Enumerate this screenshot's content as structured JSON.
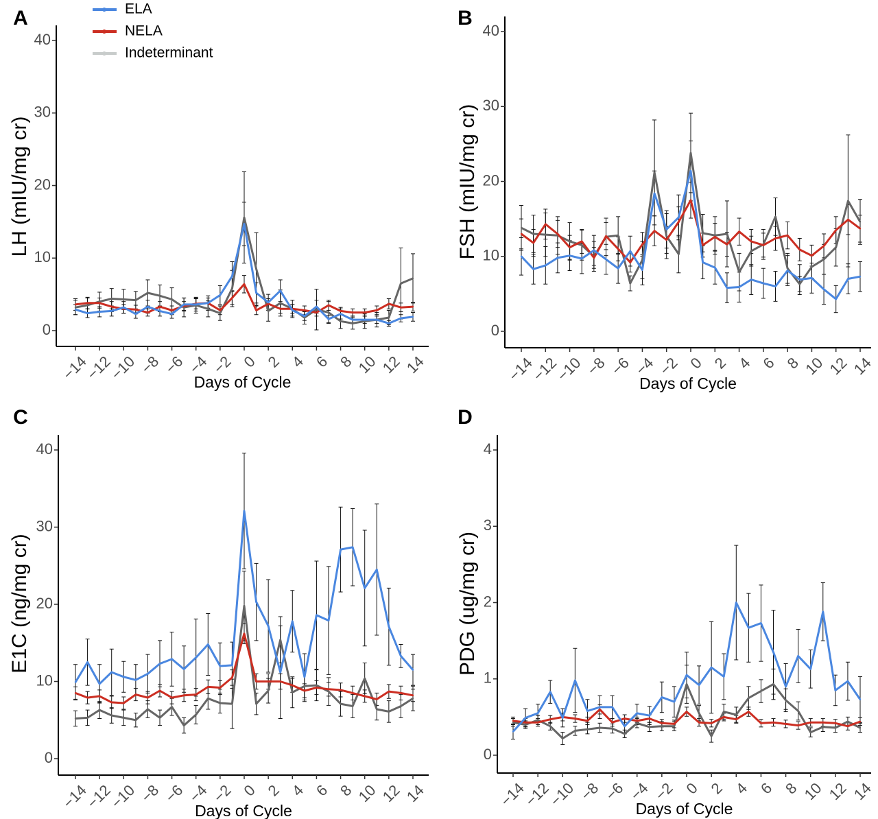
{
  "legend": {
    "items": [
      {
        "name": "ELA",
        "color": "#4a87e0"
      },
      {
        "name": "NELA",
        "color": "#cc2e22"
      },
      {
        "name": "Indeterminant",
        "color": "#c8cccb"
      }
    ]
  },
  "chart_data": [
    {
      "panel": "A",
      "type": "line",
      "xlabel": "Days of Cycle",
      "ylabel": "LH (mIU/mg cr)",
      "xlim": [
        -14,
        14
      ],
      "ylim": [
        0,
        40
      ],
      "xticks": [
        -14,
        -12,
        -10,
        -8,
        -6,
        -4,
        -2,
        0,
        2,
        4,
        6,
        8,
        10,
        12,
        14
      ],
      "xtick_labels": [
        "−14",
        "−12",
        "−10",
        "−8",
        "−6",
        "−4",
        "−2",
        "0",
        "2",
        "4",
        "6",
        "8",
        "10",
        "12",
        "14"
      ],
      "yticks": [
        0,
        10,
        20,
        30,
        40
      ],
      "ytick_labels": [
        "0",
        "10",
        "20",
        "30",
        "40"
      ],
      "x": [
        -14,
        -13,
        -12,
        -11,
        -10,
        -9,
        -8,
        -7,
        -6,
        -5,
        -4,
        -3,
        -2,
        -1,
        0,
        1,
        2,
        3,
        4,
        5,
        6,
        7,
        8,
        9,
        10,
        11,
        12,
        13,
        14
      ],
      "series": [
        {
          "name": "Indeterminant",
          "color": "#666666",
          "values": [
            3.2,
            3.5,
            4.0,
            4.4,
            4.3,
            4.2,
            5.2,
            4.8,
            4.3,
            3.2,
            3.5,
            3.0,
            2.4,
            5.8,
            15.6,
            8.5,
            2.7,
            3.8,
            3.0,
            1.8,
            2.9,
            2.5,
            1.3,
            1.0,
            1.3,
            1.5,
            1.8,
            6.5,
            7.2
          ],
          "err": [
            1.0,
            1.0,
            1.3,
            1.4,
            1.4,
            1.2,
            1.8,
            1.5,
            1.6,
            1.3,
            1.1,
            1.1,
            1.0,
            2.5,
            6.3,
            5.0,
            1.4,
            1.8,
            1.2,
            0.9,
            2.8,
            1.5,
            1.0,
            0.8,
            1.0,
            1.0,
            1.0,
            4.9,
            3.4
          ]
        },
        {
          "name": "NELA",
          "color": "#cc2e22",
          "values": [
            3.6,
            3.8,
            3.8,
            3.3,
            3.0,
            2.9,
            2.5,
            3.3,
            2.8,
            3.4,
            3.7,
            3.8,
            2.8,
            4.5,
            6.4,
            2.8,
            3.7,
            3.0,
            3.0,
            2.8,
            2.5,
            3.5,
            2.7,
            2.5,
            2.5,
            2.8,
            3.7,
            3.2,
            3.3
          ],
          "err": [
            0.8,
            0.8,
            0.7,
            0.7,
            0.6,
            0.6,
            0.5,
            0.7,
            0.6,
            0.6,
            0.7,
            0.7,
            0.6,
            0.9,
            1.2,
            0.6,
            0.7,
            0.6,
            0.6,
            0.6,
            0.5,
            0.7,
            0.5,
            0.5,
            0.5,
            0.6,
            0.7,
            0.6,
            0.6
          ]
        },
        {
          "name": "ELA",
          "color": "#4a87e0",
          "values": [
            2.9,
            2.4,
            2.6,
            2.7,
            3.2,
            2.3,
            3.3,
            2.7,
            2.3,
            3.6,
            3.6,
            3.8,
            4.9,
            7.5,
            14.7,
            5.2,
            3.9,
            5.5,
            2.8,
            2.0,
            3.3,
            1.6,
            2.3,
            1.5,
            1.5,
            1.5,
            1.0,
            1.7,
            1.9
          ],
          "err": [
            0.7,
            0.6,
            0.7,
            0.7,
            0.8,
            0.6,
            0.9,
            0.7,
            0.6,
            0.9,
            0.9,
            1.0,
            1.3,
            2.0,
            3.0,
            1.4,
            1.1,
            1.5,
            0.8,
            0.6,
            0.9,
            0.5,
            0.7,
            0.5,
            0.5,
            0.5,
            0.4,
            0.5,
            0.6
          ]
        }
      ]
    },
    {
      "panel": "B",
      "type": "line",
      "xlabel": "Days of Cycle",
      "ylabel": "FSH (mIU/mg cr)",
      "xlim": [
        -14,
        14
      ],
      "ylim": [
        0,
        40
      ],
      "xticks": [
        -14,
        -12,
        -10,
        -8,
        -6,
        -4,
        -2,
        0,
        2,
        4,
        6,
        8,
        10,
        12,
        14
      ],
      "xtick_labels": [
        "−14",
        "−12",
        "−10",
        "−8",
        "−6",
        "−4",
        "−2",
        "0",
        "2",
        "4",
        "6",
        "8",
        "10",
        "12",
        "14"
      ],
      "yticks": [
        0,
        10,
        20,
        30,
        40
      ],
      "ytick_labels": [
        "0",
        "10",
        "20",
        "30",
        "40"
      ],
      "x": [
        -14,
        -13,
        -12,
        -11,
        -10,
        -9,
        -8,
        -7,
        -6,
        -5,
        -4,
        -3,
        -2,
        -1,
        0,
        1,
        2,
        3,
        4,
        5,
        6,
        7,
        8,
        9,
        10,
        11,
        12,
        13,
        14
      ],
      "series": [
        {
          "name": "Indeterminant",
          "color": "#666666",
          "values": [
            13.8,
            13.0,
            12.9,
            12.8,
            12.0,
            11.5,
            10.0,
            12.6,
            12.8,
            6.4,
            9.5,
            21.2,
            12.7,
            10.3,
            23.8,
            13.1,
            12.8,
            13.0,
            7.9,
            10.7,
            11.6,
            15.3,
            8.4,
            6.3,
            8.6,
            9.6,
            11.2,
            17.4,
            14.6
          ],
          "err": [
            3.0,
            2.5,
            2.9,
            2.5,
            2.5,
            2.0,
            2.0,
            2.5,
            2.5,
            1.0,
            2.5,
            7.0,
            3.0,
            2.5,
            5.3,
            2.5,
            2.5,
            4.4,
            2.5,
            2.0,
            2.0,
            2.5,
            2.0,
            1.0,
            1.5,
            2.0,
            2.5,
            8.8,
            3.0
          ]
        },
        {
          "name": "NELA",
          "color": "#cc2e22",
          "values": [
            13.0,
            11.8,
            14.3,
            13.0,
            11.2,
            12.0,
            9.8,
            12.7,
            11.0,
            9.2,
            11.6,
            13.4,
            12.2,
            14.6,
            17.5,
            11.5,
            12.6,
            11.6,
            13.3,
            12.0,
            11.5,
            12.4,
            12.8,
            10.9,
            10.1,
            11.4,
            13.5,
            14.9,
            13.7
          ],
          "err": [
            2.0,
            1.8,
            2.0,
            1.8,
            1.6,
            1.6,
            1.4,
            1.8,
            1.6,
            1.3,
            1.6,
            2.0,
            1.8,
            2.0,
            2.4,
            1.6,
            1.8,
            1.6,
            1.8,
            1.6,
            1.6,
            1.6,
            1.8,
            1.5,
            1.4,
            1.6,
            1.8,
            2.0,
            1.8
          ]
        },
        {
          "name": "ELA",
          "color": "#4a87e0",
          "values": [
            10.0,
            8.3,
            8.8,
            9.8,
            10.1,
            9.7,
            10.8,
            9.6,
            8.4,
            10.7,
            8.2,
            18.4,
            13.6,
            15.2,
            21.4,
            9.2,
            8.5,
            5.8,
            5.9,
            6.9,
            6.4,
            6.0,
            8.1,
            6.9,
            7.1,
            5.6,
            4.3,
            7.0,
            7.3
          ],
          "err": [
            2.5,
            2.0,
            2.5,
            2.0,
            2.0,
            2.0,
            2.0,
            2.0,
            2.0,
            2.0,
            2.0,
            3.0,
            2.5,
            3.0,
            4.0,
            2.2,
            2.2,
            2.0,
            2.0,
            2.0,
            2.0,
            2.0,
            2.0,
            2.0,
            2.0,
            2.0,
            1.8,
            2.0,
            2.0
          ]
        }
      ]
    },
    {
      "panel": "C",
      "type": "line",
      "xlabel": "Days of Cycle",
      "ylabel": "E1C (ng/mg cr)",
      "xlim": [
        -14,
        14
      ],
      "ylim": [
        0,
        40
      ],
      "xticks": [
        -14,
        -12,
        -10,
        -8,
        -6,
        -4,
        -2,
        0,
        2,
        4,
        6,
        8,
        10,
        12,
        14
      ],
      "xtick_labels": [
        "−14",
        "−12",
        "−10",
        "−8",
        "−6",
        "−4",
        "−2",
        "0",
        "2",
        "4",
        "6",
        "8",
        "10",
        "12",
        "14"
      ],
      "yticks": [
        0,
        10,
        20,
        30,
        40
      ],
      "ytick_labels": [
        "0",
        "10",
        "20",
        "30",
        "40"
      ],
      "x": [
        -14,
        -13,
        -12,
        -11,
        -10,
        -9,
        -8,
        -7,
        -6,
        -5,
        -4,
        -3,
        -2,
        -1,
        0,
        1,
        2,
        3,
        4,
        5,
        6,
        7,
        8,
        9,
        10,
        11,
        12,
        13,
        14
      ],
      "series": [
        {
          "name": "Indeterminant",
          "color": "#666666",
          "values": [
            5.2,
            5.3,
            6.3,
            5.6,
            5.3,
            5.0,
            6.4,
            5.3,
            6.7,
            4.3,
            5.7,
            7.8,
            7.2,
            7.1,
            19.8,
            7.1,
            8.8,
            15.4,
            8.6,
            9.4,
            9.5,
            8.7,
            7.1,
            6.8,
            10.4,
            6.4,
            6.1,
            6.8,
            7.8
          ],
          "err": [
            1.0,
            1.0,
            1.1,
            1.0,
            1.0,
            0.9,
            1.1,
            1.0,
            1.1,
            1.0,
            1.2,
            1.4,
            1.3,
            3.2,
            4.5,
            1.4,
            1.6,
            3.0,
            2.0,
            2.0,
            2.0,
            1.8,
            1.6,
            1.5,
            2.0,
            1.4,
            1.4,
            1.5,
            1.6
          ]
        },
        {
          "name": "NELA",
          "color": "#cc2e22",
          "values": [
            8.5,
            7.9,
            8.1,
            7.3,
            7.2,
            8.3,
            7.9,
            8.8,
            7.9,
            8.2,
            8.3,
            9.3,
            9.2,
            10.5,
            16.2,
            10.0,
            10.0,
            10.0,
            9.5,
            8.8,
            9.2,
            9.0,
            8.9,
            8.5,
            8.1,
            7.7,
            8.7,
            8.5,
            8.2
          ],
          "err": [
            0.8,
            0.8,
            0.8,
            0.8,
            0.8,
            0.8,
            0.8,
            0.8,
            0.8,
            0.8,
            0.8,
            0.9,
            0.9,
            1.0,
            1.3,
            1.0,
            1.0,
            1.0,
            0.9,
            0.9,
            0.9,
            0.9,
            0.9,
            0.9,
            0.8,
            0.8,
            0.9,
            0.9,
            0.8
          ]
        },
        {
          "name": "ELA",
          "color": "#4a87e0",
          "values": [
            9.9,
            12.5,
            9.7,
            11.2,
            10.6,
            10.2,
            11.0,
            12.3,
            12.9,
            11.6,
            13.1,
            14.8,
            12.0,
            12.1,
            32.1,
            20.3,
            17.2,
            11.2,
            17.8,
            10.6,
            18.6,
            17.9,
            27.1,
            27.4,
            22.1,
            24.5,
            17.1,
            13.3,
            11.5
          ],
          "err": [
            2.3,
            3.0,
            2.5,
            3.0,
            2.0,
            2.0,
            2.5,
            3.0,
            3.5,
            3.0,
            5.0,
            4.0,
            3.0,
            3.0,
            7.5,
            5.0,
            6.0,
            6.0,
            4.0,
            3.0,
            7.0,
            7.0,
            5.5,
            5.0,
            7.5,
            8.5,
            5.0,
            1.5,
            2.0
          ]
        }
      ]
    },
    {
      "panel": "D",
      "type": "line",
      "xlabel": "Days of Cycle",
      "ylabel": "PDG (ug/mg cr)",
      "xlim": [
        -14,
        14
      ],
      "ylim": [
        0,
        4
      ],
      "xticks": [
        -14,
        -12,
        -10,
        -8,
        -6,
        -4,
        -2,
        0,
        2,
        4,
        6,
        8,
        10,
        12,
        14
      ],
      "xtick_labels": [
        "−14",
        "−12",
        "−10",
        "−8",
        "−6",
        "−4",
        "−2",
        "0",
        "2",
        "4",
        "6",
        "8",
        "10",
        "12",
        "14"
      ],
      "yticks": [
        0,
        1,
        2,
        3,
        4
      ],
      "ytick_labels": [
        "0",
        "1",
        "2",
        "3",
        "4"
      ],
      "x": [
        -14,
        -13,
        -12,
        -11,
        -10,
        -9,
        -8,
        -7,
        -6,
        -5,
        -4,
        -3,
        -2,
        -1,
        0,
        1,
        2,
        3,
        4,
        5,
        6,
        7,
        8,
        9,
        10,
        11,
        12,
        13,
        14
      ],
      "series": [
        {
          "name": "Indeterminant",
          "color": "#666666",
          "values": [
            0.43,
            0.4,
            0.46,
            0.38,
            0.22,
            0.32,
            0.34,
            0.36,
            0.35,
            0.28,
            0.42,
            0.37,
            0.38,
            0.38,
            0.93,
            0.55,
            0.25,
            0.57,
            0.53,
            0.75,
            0.84,
            0.93,
            0.72,
            0.58,
            0.3,
            0.37,
            0.36,
            0.44,
            0.36
          ],
          "err": [
            0.05,
            0.05,
            0.06,
            0.05,
            0.08,
            0.06,
            0.06,
            0.06,
            0.06,
            0.05,
            0.06,
            0.06,
            0.06,
            0.06,
            0.25,
            0.1,
            0.08,
            0.1,
            0.1,
            0.15,
            0.15,
            0.2,
            0.15,
            0.12,
            0.06,
            0.06,
            0.06,
            0.06,
            0.06
          ]
        },
        {
          "name": "NELA",
          "color": "#cc2e22",
          "values": [
            0.45,
            0.43,
            0.43,
            0.47,
            0.5,
            0.48,
            0.45,
            0.6,
            0.43,
            0.48,
            0.45,
            0.48,
            0.42,
            0.41,
            0.57,
            0.43,
            0.42,
            0.5,
            0.47,
            0.57,
            0.42,
            0.43,
            0.41,
            0.39,
            0.43,
            0.43,
            0.42,
            0.38,
            0.44
          ],
          "err": [
            0.05,
            0.05,
            0.05,
            0.05,
            0.05,
            0.05,
            0.05,
            0.06,
            0.05,
            0.05,
            0.05,
            0.05,
            0.05,
            0.05,
            0.06,
            0.05,
            0.05,
            0.05,
            0.05,
            0.06,
            0.05,
            0.05,
            0.05,
            0.05,
            0.05,
            0.05,
            0.05,
            0.05,
            0.05
          ]
        },
        {
          "name": "ELA",
          "color": "#4a87e0",
          "values": [
            0.31,
            0.49,
            0.55,
            0.83,
            0.49,
            0.98,
            0.58,
            0.63,
            0.63,
            0.38,
            0.55,
            0.52,
            0.76,
            0.7,
            1.05,
            0.92,
            1.15,
            1.03,
            2.0,
            1.67,
            1.73,
            1.35,
            0.9,
            1.3,
            1.13,
            1.88,
            0.85,
            0.97,
            0.73
          ],
          "err": [
            0.1,
            0.12,
            0.12,
            0.15,
            0.12,
            0.42,
            0.15,
            0.15,
            0.15,
            0.1,
            0.12,
            0.12,
            0.2,
            0.2,
            0.3,
            0.25,
            0.6,
            0.3,
            0.75,
            0.45,
            0.5,
            0.55,
            0.3,
            0.35,
            0.25,
            0.38,
            0.2,
            0.25,
            0.3
          ]
        }
      ]
    }
  ]
}
